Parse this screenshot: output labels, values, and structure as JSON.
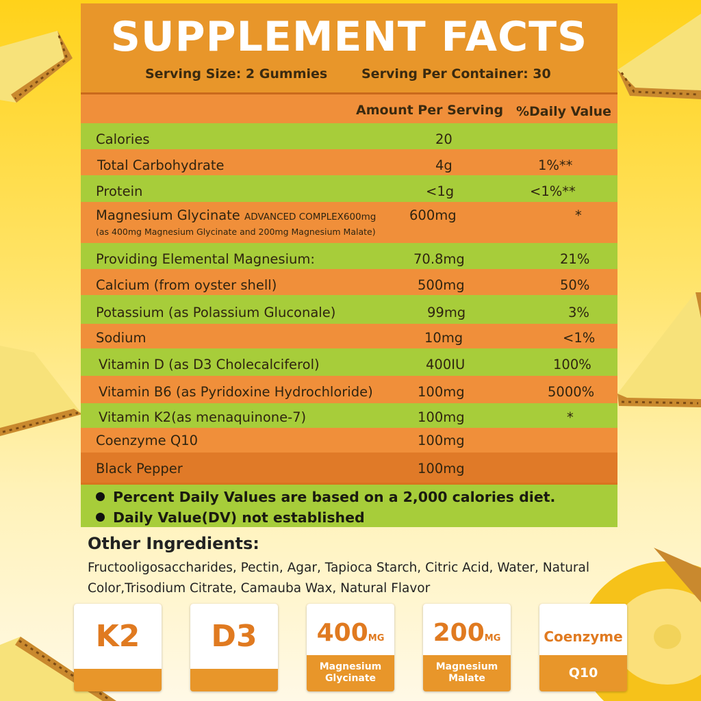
{
  "title": "SUPPLEMENT FACTS",
  "serving_size": "Serving Size: 2 Gummies",
  "servings_per_container": "Serving Per Container: 30",
  "headers": {
    "amount": "Amount Per Serving",
    "daily_value": "%Daily Value"
  },
  "rows": [
    {
      "name": "Calories",
      "amount": "20",
      "dv": ""
    },
    {
      "name": "Total Carbohydrate",
      "amount": "4g",
      "dv": "1%**"
    },
    {
      "name": "Protein",
      "amount": "<1g",
      "dv": "<1%**"
    },
    {
      "name": "Magnesium Glycinate",
      "name_suffix": "ADVANCED COMPLEX600mg",
      "sub": "(as 400mg Magnesium Glycinate and 200mg Magnesium Malate)",
      "amount": "600mg",
      "dv": "*"
    },
    {
      "name": "Providing Elemental Magnesium:",
      "amount": "70.8mg",
      "dv": "21%"
    },
    {
      "name": "Calcium (from oyster shell)",
      "amount": "500mg",
      "dv": "50%"
    },
    {
      "name": "Potassium (as Polassium Gluconale)",
      "amount": "99mg",
      "dv": "3%"
    },
    {
      "name": "Sodium",
      "amount": "10mg",
      "dv": "<1%"
    },
    {
      "name": "Vitamin D (as D3 Cholecalciferol)",
      "amount": "400IU",
      "dv": "100%"
    },
    {
      "name": "Vitamin B6 (as Pyridoxine Hydrochloride)",
      "amount": "100mg",
      "dv": "5000%"
    },
    {
      "name": "Vitamin K2(as menaquinone-7)",
      "amount": "100mg",
      "dv": "*"
    },
    {
      "name": "Coenzyme Q10",
      "amount": "100mg",
      "dv": ""
    },
    {
      "name": "Black Pepper",
      "amount": "100mg",
      "dv": ""
    }
  ],
  "notes": [
    "Percent Daily Values are based on a 2,000 calories diet.",
    "Daily Value(DV) not established"
  ],
  "other_ingredients": {
    "title": "Other Ingredients:",
    "text": "Fructooligosaccharides, Pectin, Agar, Tapioca Starch, Citric Acid, Water, Natural Color,Trisodium Citrate, Camauba Wax, Natural Flavor"
  },
  "badges": {
    "k2": "K2",
    "d3": "D3",
    "mag_glycinate": {
      "number": "400",
      "unit": "MG",
      "label_1": "Magnesium",
      "label_2": "Glycinate"
    },
    "mag_malate": {
      "number": "200",
      "unit": "MG",
      "label_1": "Magnesium",
      "label_2": "Malate"
    },
    "coenzyme": {
      "top": "Coenzyme",
      "bottom": "Q10"
    }
  },
  "colors": {
    "orange": "#e8962a",
    "row_orange": "#f08f3a",
    "row_green": "#a7cd3a",
    "background": "#ffd21a"
  }
}
